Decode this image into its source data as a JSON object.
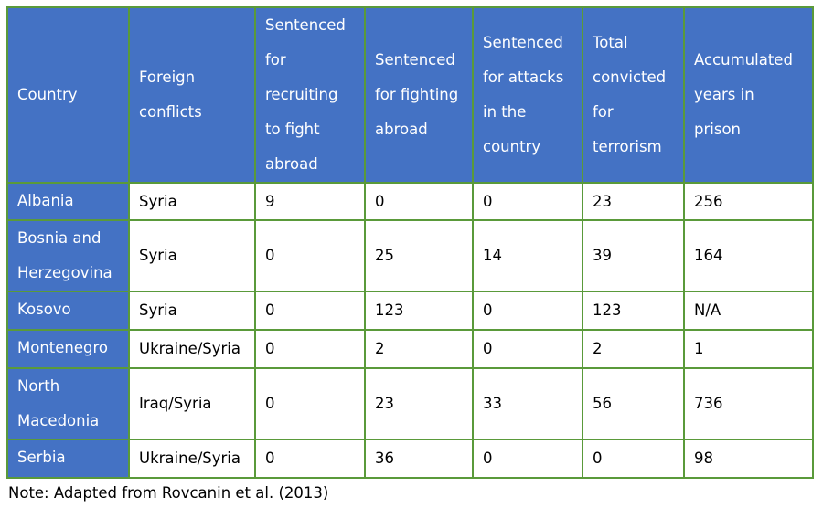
{
  "table": {
    "headers": [
      "Country",
      "Foreign conflicts",
      "Sentenced for recruiting to fight abroad",
      "Sentenced for fighting abroad",
      "Sentenced for attacks in the country",
      "Total convicted for terrorism",
      "Accumulated years in prison"
    ],
    "rows": [
      [
        "Albania",
        "Syria",
        "9",
        "0",
        "0",
        "23",
        "256"
      ],
      [
        "Bosnia and Herzegovina",
        "Syria",
        "0",
        "25",
        "14",
        "39",
        "164"
      ],
      [
        "Kosovo",
        "Syria",
        "0",
        "123",
        "0",
        "123",
        "N/A"
      ],
      [
        "Montenegro",
        "Ukraine/Syria",
        "0",
        "2",
        "0",
        "2",
        "1"
      ],
      [
        "North Macedonia",
        "Iraq/Syria",
        "0",
        "23",
        "33",
        "56",
        "736"
      ],
      [
        "Serbia",
        "Ukraine/Syria",
        "0",
        "36",
        "0",
        "0",
        "98"
      ]
    ]
  },
  "note": "Note: Adapted from Rovcanin et al. (2013)",
  "colors": {
    "header_bg": "#4472c4",
    "header_text": "#ffffff",
    "border": "#5a9a3a"
  }
}
